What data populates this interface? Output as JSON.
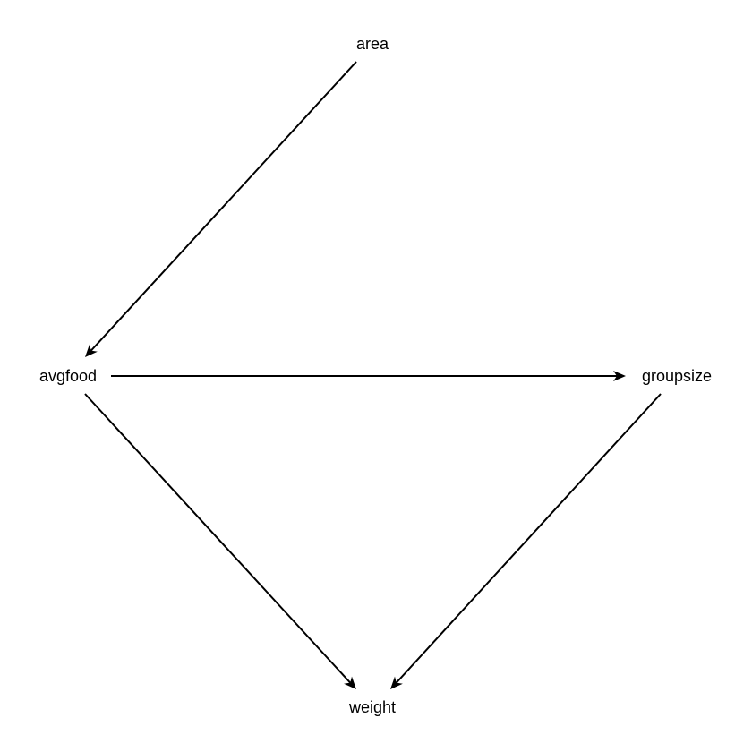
{
  "diagram": {
    "type": "directed-acyclic-graph",
    "colors": {
      "edge": "#000000",
      "label": "#000000",
      "background": "#ffffff"
    },
    "nodes": [
      {
        "id": "area",
        "label": "area"
      },
      {
        "id": "avgfood",
        "label": "avgfood"
      },
      {
        "id": "groupsize",
        "label": "groupsize"
      },
      {
        "id": "weight",
        "label": "weight"
      }
    ],
    "edges": [
      {
        "from": "area",
        "to": "avgfood"
      },
      {
        "from": "avgfood",
        "to": "groupsize"
      },
      {
        "from": "avgfood",
        "to": "weight"
      },
      {
        "from": "groupsize",
        "to": "weight"
      }
    ]
  }
}
